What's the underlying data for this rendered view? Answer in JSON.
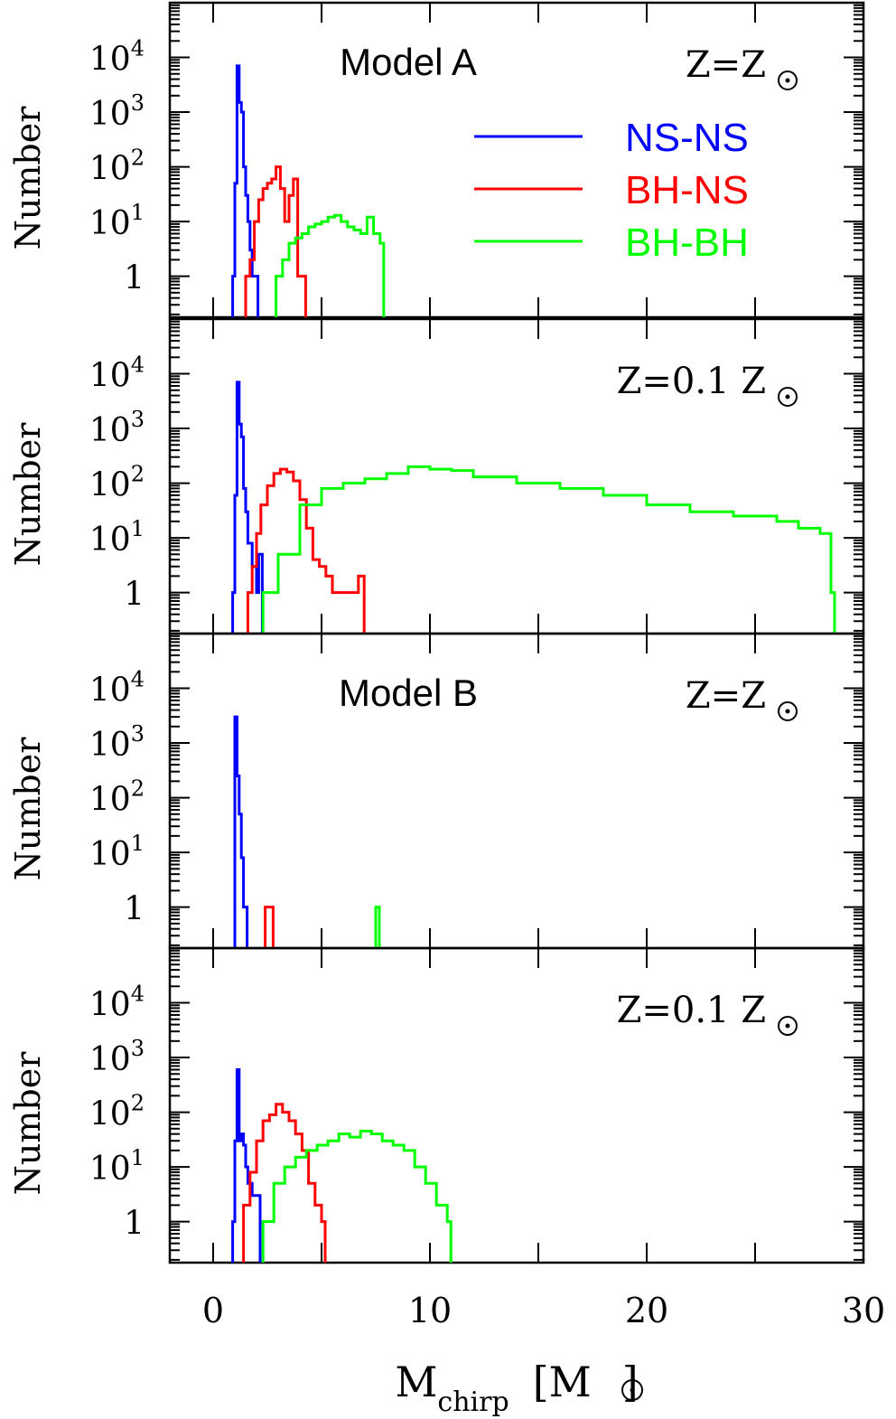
{
  "figure": {
    "xlabel_main": "M",
    "xlabel_sub": "chirp",
    "xlabel_unit": "[M",
    "xlabel_close": "]",
    "xticks": [
      "0",
      "10",
      "20",
      "30"
    ],
    "ylabel": "Number",
    "yticks": [
      {
        "base": "1",
        "exp": ""
      },
      {
        "base": "10",
        "exp": "1"
      },
      {
        "base": "10",
        "exp": "2"
      },
      {
        "base": "10",
        "exp": "3"
      },
      {
        "base": "10",
        "exp": "4"
      }
    ],
    "legend": {
      "position": "top-right of first panel",
      "entries": [
        {
          "label": "NS-NS",
          "color": "#0000ff"
        },
        {
          "label": "BH-NS",
          "color": "#ff0000"
        },
        {
          "label": "BH-BH",
          "color": "#00ff00"
        }
      ]
    },
    "colors": {
      "ns_ns": "#0000ff",
      "bh_ns": "#ff0000",
      "bh_bh": "#00ff00",
      "axis": "#000000"
    }
  },
  "chart_data": [
    {
      "type": "line",
      "panel": 1,
      "model_label": "Model A",
      "z_label": "Z=Z",
      "x_range": [
        -2,
        30
      ],
      "y_range_log10": [
        -0.75,
        5.0
      ],
      "y_scale": "log",
      "series": [
        {
          "name": "NS-NS",
          "color": "#0000ff",
          "x": [
            0.9,
            1.0,
            1.1,
            1.2,
            1.3,
            1.4,
            1.5,
            1.6,
            1.7,
            1.8,
            1.9
          ],
          "y": [
            1,
            50,
            7000,
            1500,
            1000,
            100,
            30,
            10,
            3,
            1,
            1
          ]
        },
        {
          "name": "BH-NS",
          "color": "#ff0000",
          "x": [
            1.5,
            1.7,
            1.9,
            2.1,
            2.3,
            2.5,
            2.7,
            2.9,
            3.1,
            3.3,
            3.5,
            3.7,
            3.9,
            4.1
          ],
          "y": [
            1,
            2,
            10,
            25,
            40,
            50,
            60,
            100,
            40,
            10,
            30,
            60,
            1,
            1
          ]
        },
        {
          "name": "BH-BH",
          "color": "#00ff00",
          "x": [
            2.9,
            3.2,
            3.5,
            3.8,
            4.1,
            4.4,
            4.7,
            5.0,
            5.3,
            5.6,
            5.9,
            6.2,
            6.5,
            6.8,
            7.1,
            7.4,
            7.7
          ],
          "y": [
            1,
            2,
            4,
            5,
            6,
            8,
            9,
            10,
            12,
            13,
            10,
            8,
            7,
            6,
            12,
            6,
            4
          ]
        }
      ]
    },
    {
      "type": "line",
      "panel": 2,
      "model_label": "",
      "z_label": "Z=0.1  Z",
      "x_range": [
        -2,
        30
      ],
      "y_range_log10": [
        -0.75,
        5.0
      ],
      "y_scale": "log",
      "series": [
        {
          "name": "NS-NS",
          "color": "#0000ff",
          "x": [
            0.9,
            1.0,
            1.1,
            1.2,
            1.3,
            1.4,
            1.5,
            1.6,
            1.8,
            2.0,
            2.1
          ],
          "y": [
            1,
            60,
            7000,
            1200,
            700,
            80,
            30,
            8,
            3,
            1,
            5
          ]
        },
        {
          "name": "BH-NS",
          "color": "#ff0000",
          "x": [
            1.6,
            1.8,
            2.0,
            2.2,
            2.5,
            2.8,
            3.1,
            3.4,
            3.7,
            4.0,
            4.3,
            4.6,
            4.9,
            5.2,
            5.5,
            6.7,
            6.8
          ],
          "y": [
            1,
            3,
            12,
            40,
            90,
            150,
            180,
            160,
            110,
            50,
            15,
            4,
            3,
            2,
            1,
            2,
            2
          ]
        },
        {
          "name": "BH-BH",
          "color": "#00ff00",
          "x": [
            2.3,
            3.0,
            4.0,
            5.0,
            6.0,
            7.0,
            8.0,
            9.0,
            10.0,
            11.0,
            12.0,
            14.0,
            16.0,
            18.0,
            20.0,
            22.0,
            24.0,
            26.0,
            27.0,
            28.0,
            28.5
          ],
          "y": [
            1,
            5,
            40,
            80,
            100,
            120,
            150,
            200,
            180,
            170,
            130,
            100,
            80,
            60,
            40,
            30,
            25,
            20,
            15,
            12,
            1
          ]
        }
      ]
    },
    {
      "type": "line",
      "panel": 3,
      "model_label": "Model B",
      "z_label": "Z=Z",
      "x_range": [
        -2,
        30
      ],
      "y_range_log10": [
        -0.75,
        5.0
      ],
      "y_scale": "log",
      "series": [
        {
          "name": "NS-NS",
          "color": "#0000ff",
          "x": [
            1.0,
            1.1,
            1.2,
            1.3,
            1.4
          ],
          "y": [
            3000,
            250,
            50,
            8,
            1
          ]
        },
        {
          "name": "BH-NS",
          "color": "#ff0000",
          "x": [
            2.4,
            2.6
          ],
          "y": [
            1,
            1
          ]
        },
        {
          "name": "BH-BH",
          "color": "#00ff00",
          "x": [
            7.5
          ],
          "y": [
            1
          ]
        }
      ]
    },
    {
      "type": "line",
      "panel": 4,
      "model_label": "",
      "z_label": "Z=0.1  Z",
      "x_range": [
        -2,
        30
      ],
      "y_range_log10": [
        -0.75,
        5.0
      ],
      "y_scale": "log",
      "series": [
        {
          "name": "NS-NS",
          "color": "#0000ff",
          "x": [
            0.9,
            1.0,
            1.1,
            1.2,
            1.3,
            1.4,
            1.5,
            1.6,
            1.8,
            2.0
          ],
          "y": [
            1,
            30,
            600,
            30,
            40,
            25,
            10,
            5,
            3,
            3
          ]
        },
        {
          "name": "BH-NS",
          "color": "#ff0000",
          "x": [
            1.4,
            1.7,
            2.0,
            2.3,
            2.6,
            2.9,
            3.2,
            3.5,
            3.8,
            4.1,
            4.4,
            4.7,
            5.0
          ],
          "y": [
            2,
            8,
            30,
            70,
            90,
            140,
            100,
            70,
            40,
            20,
            5,
            2,
            1
          ]
        },
        {
          "name": "BH-BH",
          "color": "#00ff00",
          "x": [
            2.3,
            2.8,
            3.3,
            3.8,
            4.3,
            4.8,
            5.3,
            5.8,
            6.3,
            6.8,
            7.3,
            7.8,
            8.3,
            8.8,
            9.3,
            9.8,
            10.3,
            10.8
          ],
          "y": [
            1,
            5,
            10,
            15,
            20,
            25,
            30,
            40,
            35,
            45,
            40,
            30,
            25,
            20,
            10,
            5,
            2,
            1
          ]
        }
      ]
    }
  ]
}
